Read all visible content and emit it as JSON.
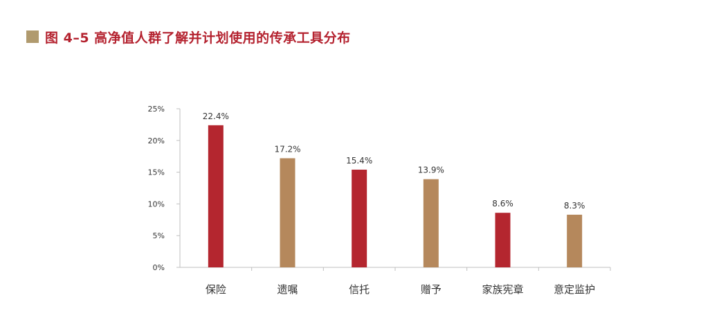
{
  "header": {
    "title": "图 4–5  高净值人群了解并计划使用的传承工具分布",
    "square_color": "#b09a6e",
    "title_color": "#b4222f"
  },
  "chart_data": {
    "type": "bar",
    "title": "图 4–5  高净值人群了解并计划使用的传承工具分布",
    "categories": [
      "保险",
      "遗嘱",
      "信托",
      "赠予",
      "家族宪章",
      "意定监护"
    ],
    "values": [
      22.4,
      17.2,
      15.4,
      13.9,
      8.6,
      8.3
    ],
    "value_labels": [
      "22.4%",
      "17.2%",
      "15.4%",
      "13.9%",
      "8.6%",
      "8.3%"
    ],
    "bar_colors": [
      "#b4262f",
      "#b5885c",
      "#b4262f",
      "#b5885c",
      "#b4262f",
      "#b5885c"
    ],
    "ylim": [
      0,
      25
    ],
    "yticks": [
      0,
      5,
      10,
      15,
      20,
      25
    ],
    "ytick_labels": [
      "0%",
      "5%",
      "10%",
      "15%",
      "20%",
      "25%"
    ],
    "xlabel": "",
    "ylabel": "",
    "grid": false,
    "legend": "none"
  }
}
